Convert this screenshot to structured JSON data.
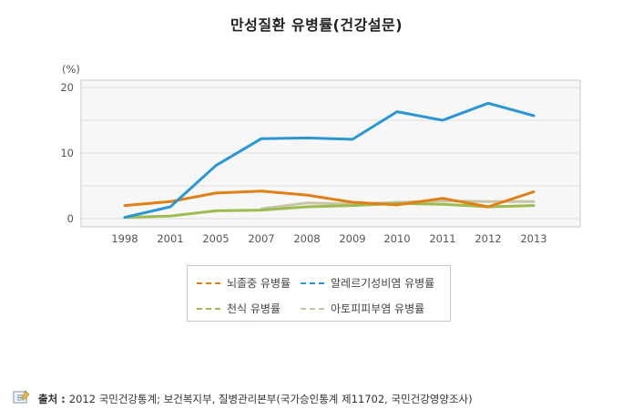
{
  "title": "만성질환 유병률(건강설문)",
  "source": {
    "label": "출처 :",
    "text": "2012 국민건강통계; 보건복지부, 질병관리본부(국가승인통계 제11702, 국민건강영양조사)"
  },
  "chart_data": {
    "type": "line",
    "title": "만성질환 유병률(건강설문)",
    "ylabel": "(%)",
    "ylim": [
      0,
      20
    ],
    "yticks": [
      0,
      10,
      20
    ],
    "grid": true,
    "legend_position": "bottom",
    "categories": [
      "1998",
      "2001",
      "2005",
      "2007",
      "2008",
      "2009",
      "2010",
      "2011",
      "2012",
      "2013"
    ],
    "series": [
      {
        "name": "뇌졸중 유병률",
        "color": "#e07f12",
        "values": [
          2.0,
          2.6,
          3.9,
          4.2,
          3.6,
          2.5,
          2.1,
          3.1,
          1.8,
          4.1
        ]
      },
      {
        "name": "알레르기성비염 유병률",
        "color": "#2a96d4",
        "values": [
          0.2,
          1.8,
          8.1,
          12.2,
          12.3,
          12.1,
          16.3,
          15.0,
          17.6,
          15.7
        ]
      },
      {
        "name": "천식 유병률",
        "color": "#9dbb4f",
        "values": [
          0.2,
          0.4,
          1.2,
          1.3,
          1.8,
          2.0,
          2.3,
          2.2,
          1.8,
          2.0
        ]
      },
      {
        "name": "아토피피부염 유병률",
        "color": "#c8c4a6",
        "values": [
          null,
          null,
          null,
          1.5,
          2.4,
          2.2,
          2.5,
          2.7,
          2.6,
          2.6
        ]
      }
    ]
  }
}
